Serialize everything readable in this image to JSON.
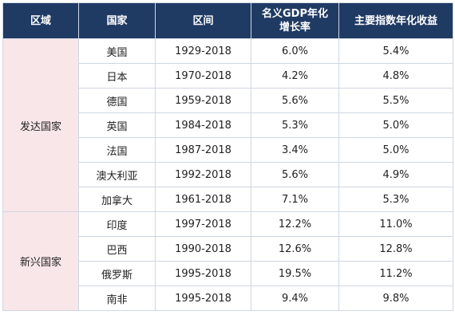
{
  "headers": {
    "region": "区域",
    "country": "国家",
    "period": "区间",
    "gdp_line1": "名义GDP年化",
    "gdp_line2": "增长率",
    "index": "主要指数年化收益"
  },
  "groups": [
    {
      "region": "发达国家",
      "rows": [
        {
          "country": "美国",
          "period": "1929-2018",
          "gdp": "6.0%",
          "index": "5.4%"
        },
        {
          "country": "日本",
          "period": "1970-2018",
          "gdp": "4.2%",
          "index": "4.8%"
        },
        {
          "country": "德国",
          "period": "1959-2018",
          "gdp": "5.6%",
          "index": "5.5%"
        },
        {
          "country": "英国",
          "period": "1984-2018",
          "gdp": "5.3%",
          "index": "5.0%"
        },
        {
          "country": "法国",
          "period": "1987-2018",
          "gdp": "3.4%",
          "index": "5.0%"
        },
        {
          "country": "澳大利亚",
          "period": "1992-2018",
          "gdp": "5.6%",
          "index": "4.9%"
        },
        {
          "country": "加拿大",
          "period": "1961-2018",
          "gdp": "7.1%",
          "index": "5.3%"
        }
      ]
    },
    {
      "region": "新兴国家",
      "rows": [
        {
          "country": "印度",
          "period": "1997-2018",
          "gdp": "12.2%",
          "index": "11.0%"
        },
        {
          "country": "巴西",
          "period": "1990-2018",
          "gdp": "12.6%",
          "index": "12.8%"
        },
        {
          "country": "俄罗斯",
          "period": "1995-2018",
          "gdp": "19.5%",
          "index": "11.2%"
        },
        {
          "country": "南非",
          "period": "1995-2018",
          "gdp": "9.4%",
          "index": "9.8%"
        }
      ]
    }
  ]
}
